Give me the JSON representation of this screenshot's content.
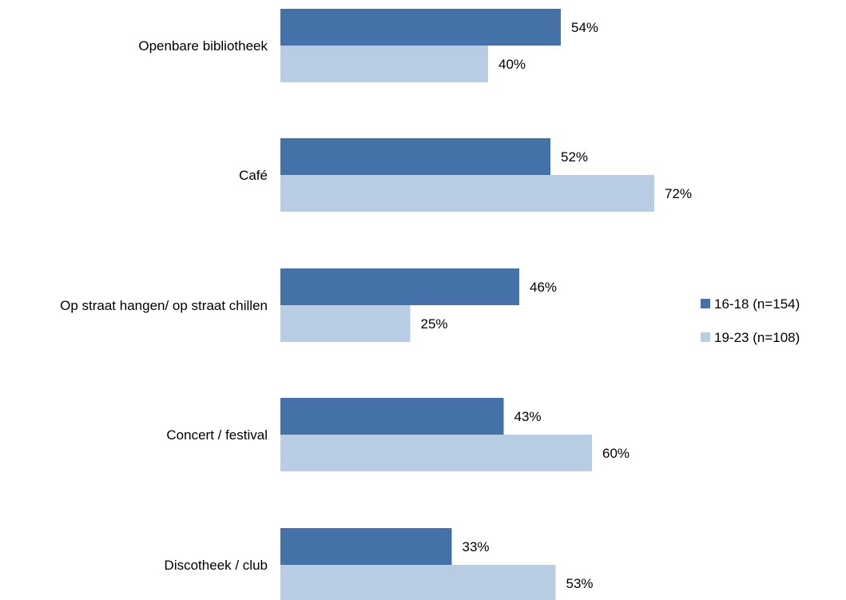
{
  "chart_data": {
    "type": "bar",
    "orientation": "horizontal",
    "categories": [
      "Openbare bibliotheek",
      "Café",
      "Op straat hangen/ op straat chillen",
      "Concert / festival",
      "Discotheek / club"
    ],
    "series": [
      {
        "name": "16-18 (n=154)",
        "values": [
          54,
          52,
          46,
          43,
          33
        ],
        "labels": [
          "54%",
          "52%",
          "46%",
          "43%",
          "33%"
        ],
        "color": "#4472a8"
      },
      {
        "name": "19-23 (n=108)",
        "values": [
          40,
          72,
          25,
          60,
          53
        ],
        "labels": [
          "40%",
          "72%",
          "25%",
          "60%",
          "53%"
        ],
        "color": "#b8cce4"
      }
    ],
    "xlim": [
      0,
      100
    ],
    "grid": false,
    "legend_position": "right",
    "title": "",
    "xlabel": "",
    "ylabel": ""
  }
}
